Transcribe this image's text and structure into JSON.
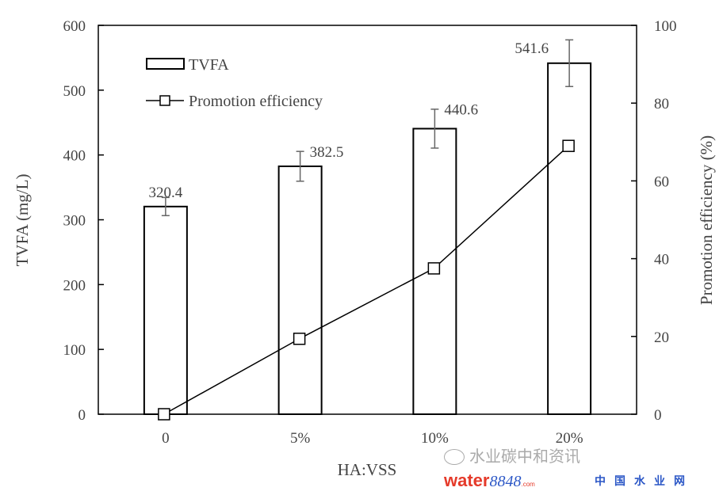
{
  "chart_data": {
    "type": "bar",
    "categories": [
      "0",
      "5%",
      "10%",
      "20%"
    ],
    "series": [
      {
        "name": "TVFA",
        "type": "bar",
        "axis": "left",
        "values": [
          320.4,
          382.5,
          440.6,
          541.6
        ],
        "errors": [
          14,
          23,
          30,
          36
        ],
        "labels": [
          "320.4",
          "382.5",
          "440.6",
          "541.6"
        ]
      },
      {
        "name": "Promotion efficiency",
        "type": "line",
        "marker": "square",
        "axis": "right",
        "values": [
          0,
          19.4,
          37.5,
          69.0
        ]
      }
    ],
    "xlabel": "HA:VSS",
    "ylabel": "TVFA (mg/L)",
    "y2label": "Promotion efficiency (%)",
    "ylim": [
      0,
      600
    ],
    "y2lim": [
      0,
      100
    ],
    "yticks": [
      "0",
      "100",
      "200",
      "300",
      "400",
      "500",
      "600"
    ],
    "y2ticks": [
      "0",
      "20",
      "40",
      "60",
      "80",
      "100"
    ],
    "legend_position": "top-left",
    "grid": false
  },
  "watermark": {
    "account": "水业碳中和资讯",
    "logo": "water",
    "logo_num": "8848",
    "logo_com": ".com",
    "site": "中国水业网"
  }
}
